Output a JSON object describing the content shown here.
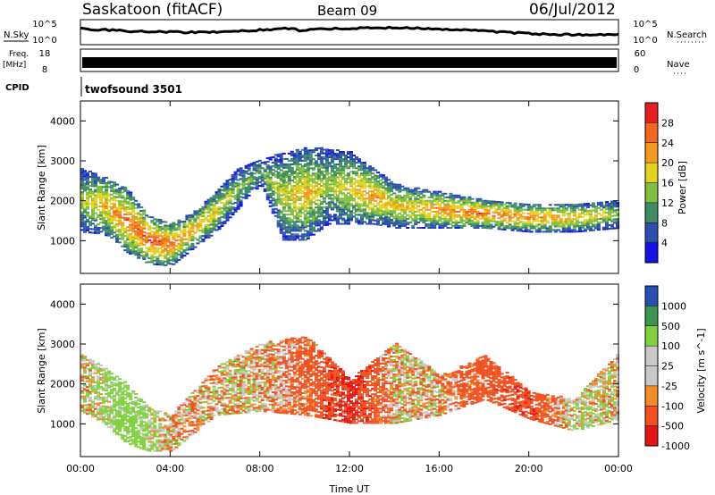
{
  "header": {
    "station": "Saskatoon (fitACF)",
    "beam": "Beam 09",
    "date": "06/Jul/2012"
  },
  "side_labels": {
    "nsky": "N.Sky",
    "nsearch": "N.Search",
    "freq": "Freq.",
    "freq_unit": "[MHz]",
    "nave": "Nave",
    "cpid": "CPID",
    "cpid_value": "twofsound 3501"
  },
  "strip_ticks": {
    "noise_left_top": "10^5",
    "noise_left_bottom": "10^0",
    "noise_right_top": "10^5",
    "noise_right_bottom": "10^0",
    "freq_left_top": "18",
    "freq_left_bottom": "8",
    "nave_right_top": "60",
    "nave_right_bottom": "0"
  },
  "colors": {
    "power_scale": [
      "#1414e6",
      "#2a4fb0",
      "#3f8c64",
      "#7fbf3f",
      "#e6d21e",
      "#f29a1e",
      "#f2661e",
      "#e61e1e"
    ],
    "velocity_scale": [
      "#e61414",
      "#f2501e",
      "#f28c28",
      "#c8c8c8",
      "#c8c8c8",
      "#7fd23c",
      "#3c9650",
      "#2850b4"
    ]
  },
  "chart_data": [
    {
      "type": "heatmap",
      "panel": "power",
      "x": [
        "00:00",
        "04:00",
        "08:00",
        "12:00",
        "16:00",
        "20:00",
        "00:00"
      ],
      "xlim": [
        0,
        24
      ],
      "ylim": [
        180,
        4500
      ],
      "yticks": [
        1000,
        2000,
        3000,
        4000
      ],
      "ylabel": "Slant Range [km]",
      "colorbar": {
        "label": "Power [dB]",
        "ticks": [
          "28",
          "24",
          "20",
          "16",
          "12",
          "8",
          "4"
        ],
        "range": [
          0,
          30
        ]
      },
      "bands": [
        {
          "hour": 0.0,
          "low": 1200,
          "high": 2800,
          "peak_db": 14
        },
        {
          "hour": 1.0,
          "low": 1150,
          "high": 2600,
          "peak_db": 20
        },
        {
          "hour": 2.0,
          "low": 700,
          "high": 2300,
          "peak_db": 24
        },
        {
          "hour": 3.0,
          "low": 400,
          "high": 1600,
          "peak_db": 26
        },
        {
          "hour": 4.0,
          "low": 350,
          "high": 1400,
          "peak_db": 24
        },
        {
          "hour": 5.0,
          "low": 800,
          "high": 1700,
          "peak_db": 20
        },
        {
          "hour": 6.0,
          "low": 1200,
          "high": 2200,
          "peak_db": 18
        },
        {
          "hour": 7.0,
          "low": 1800,
          "high": 2800,
          "peak_db": 14
        },
        {
          "hour": 8.0,
          "low": 2400,
          "high": 3000,
          "peak_db": 12
        },
        {
          "hour": 9.0,
          "low": 1000,
          "high": 3200,
          "peak_db": 16
        },
        {
          "hour": 10.0,
          "low": 1000,
          "high": 3300,
          "peak_db": 20
        },
        {
          "hour": 11.0,
          "low": 1400,
          "high": 3300,
          "peak_db": 14
        },
        {
          "hour": 12.0,
          "low": 1400,
          "high": 3200,
          "peak_db": 18
        },
        {
          "hour": 13.0,
          "low": 1400,
          "high": 2800,
          "peak_db": 22
        },
        {
          "hour": 14.0,
          "low": 1300,
          "high": 2400,
          "peak_db": 18
        },
        {
          "hour": 16.0,
          "low": 1300,
          "high": 2200,
          "peak_db": 22
        },
        {
          "hour": 18.0,
          "low": 1300,
          "high": 2000,
          "peak_db": 24
        },
        {
          "hour": 20.0,
          "low": 1200,
          "high": 1900,
          "peak_db": 22
        },
        {
          "hour": 22.0,
          "low": 1200,
          "high": 1900,
          "peak_db": 20
        },
        {
          "hour": 24.0,
          "low": 1300,
          "high": 2000,
          "peak_db": 14
        }
      ]
    },
    {
      "type": "heatmap",
      "panel": "velocity",
      "x": [
        "00:00",
        "04:00",
        "08:00",
        "12:00",
        "16:00",
        "20:00",
        "00:00"
      ],
      "xlim": [
        0,
        24
      ],
      "ylim": [
        180,
        4500
      ],
      "yticks": [
        1000,
        2000,
        3000,
        4000
      ],
      "ylabel": "Slant Range [km]",
      "xlabel": "Time UT",
      "colorbar": {
        "label": "Velocity [m s^-1]",
        "ticks": [
          "1000",
          "500",
          "100",
          "25",
          "-25",
          "-100",
          "-500",
          "-1000"
        ],
        "range": [
          -1200,
          1200
        ]
      },
      "bands": [
        {
          "hour": 0.0,
          "low": 1300,
          "high": 2700,
          "velocity": 0
        },
        {
          "hour": 1.0,
          "low": 1000,
          "high": 2400,
          "velocity": 120
        },
        {
          "hour": 2.0,
          "low": 500,
          "high": 2000,
          "velocity": 300
        },
        {
          "hour": 3.0,
          "low": 300,
          "high": 1400,
          "velocity": 150
        },
        {
          "hour": 4.0,
          "low": 300,
          "high": 1200,
          "velocity": -60
        },
        {
          "hour": 6.0,
          "low": 1200,
          "high": 2400,
          "velocity": 0
        },
        {
          "hour": 8.0,
          "low": 1300,
          "high": 3000,
          "velocity": 0
        },
        {
          "hour": 10.0,
          "low": 1200,
          "high": 3200,
          "velocity": -200
        },
        {
          "hour": 12.0,
          "low": 1000,
          "high": 2100,
          "velocity": -600
        },
        {
          "hour": 14.0,
          "low": 1000,
          "high": 3000,
          "velocity": 0
        },
        {
          "hour": 16.0,
          "low": 1200,
          "high": 2200,
          "velocity": -40
        },
        {
          "hour": 18.0,
          "low": 1600,
          "high": 2700,
          "velocity": -300
        },
        {
          "hour": 20.0,
          "low": 1100,
          "high": 1800,
          "velocity": -400
        },
        {
          "hour": 22.0,
          "low": 800,
          "high": 1600,
          "velocity": 80
        },
        {
          "hour": 24.0,
          "low": 1100,
          "high": 2800,
          "velocity": 0
        }
      ]
    }
  ]
}
